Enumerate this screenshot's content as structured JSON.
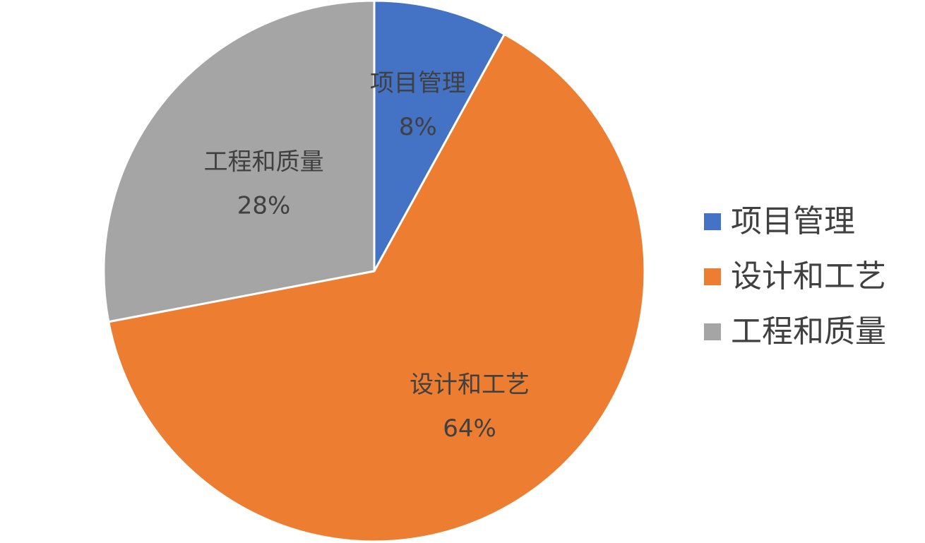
{
  "chart_data": {
    "type": "pie",
    "title": "",
    "categories": [
      "项目管理",
      "设计和工艺",
      "工程和质量"
    ],
    "values": [
      8,
      64,
      28
    ],
    "value_labels": [
      "8%",
      "64%",
      "28%"
    ],
    "colors": [
      "#4472C4",
      "#ED7D31",
      "#A5A5A5"
    ],
    "start_angle": "12 o'clock",
    "direction": "clockwise",
    "legend_position": "right"
  },
  "legend": {
    "items": [
      {
        "label": "项目管理",
        "color": "#4472C4"
      },
      {
        "label": "设计和工艺",
        "color": "#ED7D31"
      },
      {
        "label": "工程和质量",
        "color": "#A5A5A5"
      }
    ]
  }
}
